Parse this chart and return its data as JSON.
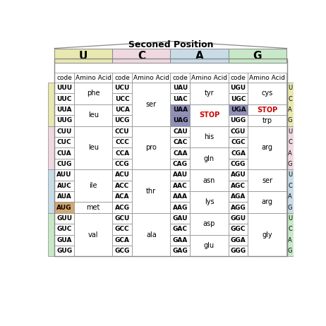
{
  "title": "Seconed Position",
  "col_headers": [
    "U",
    "C",
    "A",
    "G"
  ],
  "col_header_colors": [
    "#e8e8b0",
    "#f0d8e0",
    "#c8dce8",
    "#c8e8c8"
  ],
  "row_group_colors": [
    "#e8e8b0",
    "#f0d8e0",
    "#c8dce8",
    "#c8e8c8"
  ],
  "subheader": [
    "code",
    "Amino Acid",
    "code",
    "Amino Acid",
    "code",
    "Amino Acid",
    "code",
    "Amino Acid"
  ],
  "stop_cells": [
    "UAA",
    "UAG",
    "UGA"
  ],
  "aug_cell": "AUG",
  "stop_color": "#cc0000",
  "aug_bg": "#d4a870",
  "stop_bg": "#9090bb",
  "uga_bg": "#9090bb",
  "rows_data": [
    {
      "u_codes": [
        "UUU",
        "UUC",
        "UUA",
        "UUG"
      ],
      "aa_u": [
        "phe",
        "phe",
        "leu",
        "leu"
      ],
      "c_codes": [
        "UCU",
        "UCC",
        "UCA",
        "UCG"
      ],
      "aa_c": [
        "ser",
        "ser",
        "ser",
        "ser"
      ],
      "a_codes": [
        "UAU",
        "UAC",
        "UAA",
        "UAG"
      ],
      "aa_a": [
        "tyr",
        "tyr",
        "STOP",
        "STOP"
      ],
      "g_codes": [
        "UGU",
        "UGC",
        "UGA",
        "UGG"
      ],
      "aa_g": [
        "cys",
        "cys",
        "STOP",
        "trp"
      ]
    },
    {
      "u_codes": [
        "CUU",
        "CUC",
        "CUA",
        "CUG"
      ],
      "aa_u": [
        "leu",
        "leu",
        "leu",
        "leu"
      ],
      "c_codes": [
        "CCU",
        "CCC",
        "CCA",
        "CCG"
      ],
      "aa_c": [
        "pro",
        "pro",
        "pro",
        "pro"
      ],
      "a_codes": [
        "CAU",
        "CAC",
        "CAA",
        "CAG"
      ],
      "aa_a": [
        "his",
        "his",
        "gln",
        "gln"
      ],
      "g_codes": [
        "CGU",
        "CGC",
        "CGA",
        "CGG"
      ],
      "aa_g": [
        "arg",
        "arg",
        "arg",
        "arg"
      ]
    },
    {
      "u_codes": [
        "AUU",
        "AUC",
        "AUA",
        "AUG"
      ],
      "aa_u": [
        "ile",
        "ile",
        "ile",
        "met"
      ],
      "c_codes": [
        "ACU",
        "ACC",
        "ACA",
        "ACG"
      ],
      "aa_c": [
        "thr",
        "thr",
        "thr",
        "thr"
      ],
      "a_codes": [
        "AAU",
        "AAC",
        "AAA",
        "AAG"
      ],
      "aa_a": [
        "asn",
        "asn",
        "lys",
        "lys"
      ],
      "g_codes": [
        "AGU",
        "AGC",
        "AGA",
        "AGG"
      ],
      "aa_g": [
        "ser",
        "ser",
        "arg",
        "arg"
      ]
    },
    {
      "u_codes": [
        "GUU",
        "GUC",
        "GUA",
        "GUG"
      ],
      "aa_u": [
        "val",
        "val",
        "val",
        "val"
      ],
      "c_codes": [
        "GCU",
        "GCC",
        "GCA",
        "GCG"
      ],
      "aa_c": [
        "ala",
        "ala",
        "ala",
        "ala"
      ],
      "a_codes": [
        "GAU",
        "GAC",
        "GAA",
        "GAG"
      ],
      "aa_a": [
        "asp",
        "asp",
        "glu",
        "glu"
      ],
      "g_codes": [
        "GGU",
        "GGC",
        "GGA",
        "GGG"
      ],
      "aa_g": [
        "gly",
        "gly",
        "gly",
        "gly"
      ]
    }
  ],
  "right_strip_labels": [
    [
      "U",
      "C",
      "A",
      "G"
    ],
    [
      "U",
      "C",
      "A",
      "G"
    ],
    [
      "U",
      "C",
      "A",
      "G"
    ],
    [
      "U",
      "C",
      "A",
      "G"
    ]
  ]
}
